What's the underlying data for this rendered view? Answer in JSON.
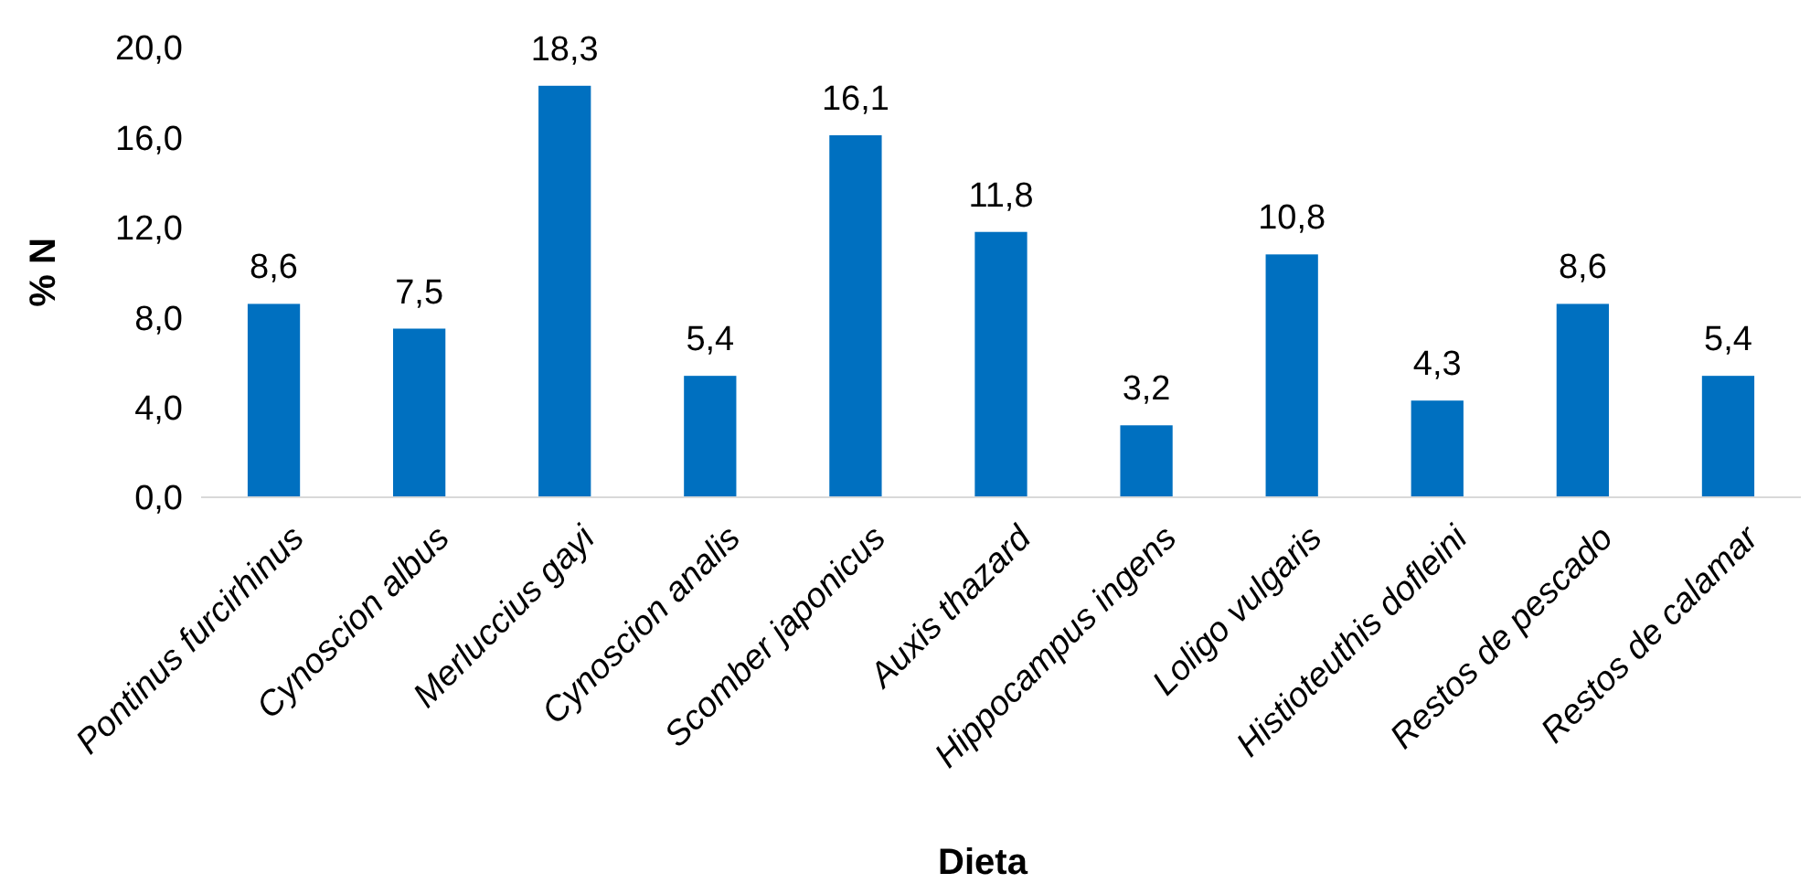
{
  "chart_data": {
    "type": "bar",
    "xlabel": "Dieta",
    "ylabel": "% N",
    "categories": [
      "Pontinus furcirhinus",
      "Cynoscion albus",
      "Merluccius gayi",
      "Cynoscion analis",
      "Scomber japonicus",
      "Auxis thazard",
      "Hippocampus ingens",
      "Loligo vulgaris",
      "Histioteuthis dofleini",
      "Restos de pescado",
      "Restos de calamar"
    ],
    "values": [
      8.6,
      7.5,
      18.3,
      5.4,
      16.1,
      11.8,
      3.2,
      10.8,
      4.3,
      8.6,
      5.4
    ],
    "value_labels": [
      "8,6",
      "7,5",
      "18,3",
      "5,4",
      "16,1",
      "11,8",
      "3,2",
      "10,8",
      "4,3",
      "8,6",
      "5,4"
    ],
    "color": "#0070c0",
    "ylim": [
      0,
      20
    ],
    "yticks": [
      {
        "value": 0,
        "label": "0,0"
      },
      {
        "value": 4,
        "label": "4,0"
      },
      {
        "value": 8,
        "label": "8,0"
      },
      {
        "value": 12,
        "label": "12,0"
      },
      {
        "value": 16,
        "label": "16,0"
      },
      {
        "value": 20,
        "label": "20,0"
      }
    ],
    "grid": false
  }
}
